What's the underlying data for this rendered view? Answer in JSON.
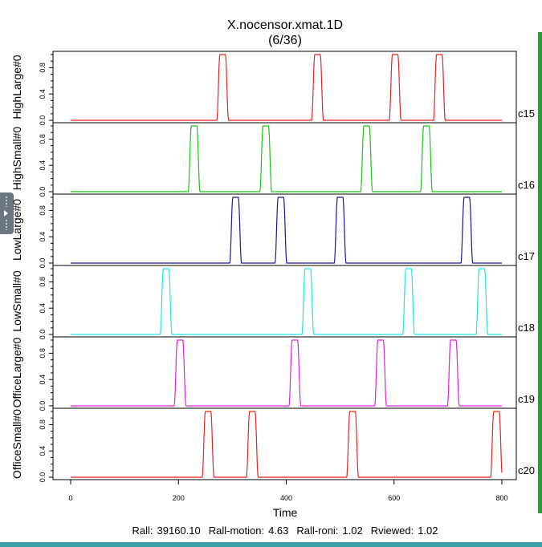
{
  "chart_data": {
    "type": "line",
    "title": "X.nocensor.xmat.1D",
    "subtitle": "(6/36)",
    "xlabel": "Time",
    "xlim": [
      0,
      800
    ],
    "x_ticks": [
      0,
      200,
      400,
      600,
      800
    ],
    "y_ticks": [
      0.0,
      0.4,
      0.8
    ],
    "ylim": [
      0,
      1
    ],
    "grid": false,
    "legend": "none",
    "panels": [
      {
        "ylabel": "HighLarge#0",
        "tag": "c15",
        "color": "#e8211e",
        "peaks": [
          282,
          458,
          602,
          684
        ]
      },
      {
        "ylabel": "HighSmall#0",
        "tag": "c16",
        "color": "#17c417",
        "peaks": [
          229,
          362,
          549,
          660
        ]
      },
      {
        "ylabel": "LowLarge#0",
        "tag": "c17",
        "color": "#1717a8",
        "peaks": [
          306,
          390,
          500,
          735
        ]
      },
      {
        "ylabel": "LowSmall#0",
        "tag": "c18",
        "color": "#1ee4e4",
        "peaks": [
          177,
          440,
          627,
          763
        ]
      },
      {
        "ylabel": "OfficeLarge#0",
        "tag": "c19",
        "color": "#e11ee1",
        "peaks": [
          203,
          416,
          575,
          710
        ]
      },
      {
        "ylabel": "OfficeSmall#0",
        "tag": "c20",
        "color": "#e8211e",
        "peaks": [
          255,
          337,
          523,
          790
        ]
      }
    ]
  },
  "footer": {
    "rall_label": "Rall:",
    "rall_value": "39160.10",
    "motion_label": "Rall-motion:",
    "motion_value": "4.63",
    "roni_label": "Rall-roni:",
    "roni_value": "1.02",
    "viewed_label": "Rviewed:",
    "viewed_value": "1.02"
  }
}
